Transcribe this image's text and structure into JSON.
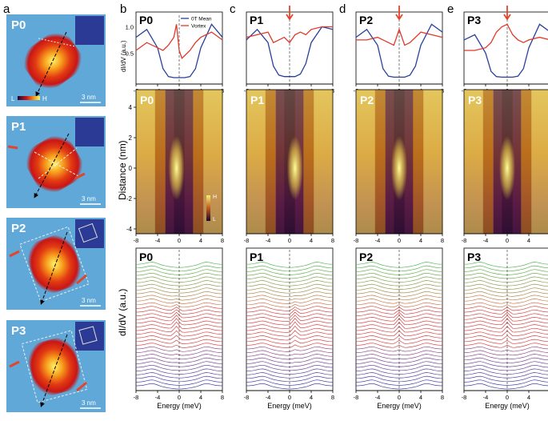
{
  "panel_letters": [
    "a",
    "b",
    "c",
    "d",
    "e"
  ],
  "maps": [
    {
      "label": "P0",
      "scale": "3 nm",
      "legend_low": "L",
      "legend_high": "H"
    },
    {
      "label": "P1",
      "scale": "3 nm"
    },
    {
      "label": "P2",
      "scale": "3 nm"
    },
    {
      "label": "P3",
      "scale": "3 nm"
    }
  ],
  "columns": [
    {
      "label": "P0",
      "legend": [
        "0T Mean",
        "Vortex"
      ],
      "arrow": false,
      "colorbar_high": "H",
      "colorbar_low": "L"
    },
    {
      "label": "P1",
      "arrow": true
    },
    {
      "label": "P2",
      "arrow": true
    },
    {
      "label": "P3",
      "arrow": true
    }
  ],
  "axes": {
    "top_ylabel": "dI/dV (a.u.)",
    "top_yticks": [
      "1.0",
      "0.5"
    ],
    "mid_ylabel": "Distance (nm)",
    "mid_yticks": [
      "4",
      "2",
      "0",
      "-2",
      "-4"
    ],
    "bottom_ylabel": "dI/dV (a.u.)",
    "xticks": [
      "-8",
      "-4",
      "0",
      "4",
      "8"
    ],
    "xlabel": "Energy (meV)"
  },
  "colors": {
    "map_bg": "#5fa8d8",
    "mean_line": "#2a3f9c",
    "vortex_line": "#e0392b",
    "dash": "#444444",
    "arrow": "#e0462b"
  },
  "chart_data": [
    {
      "type": "line",
      "title": "P0",
      "x": [
        -8,
        -6,
        -4,
        -3,
        -2,
        -1,
        -0.5,
        0,
        0.5,
        1,
        2,
        3,
        4,
        6,
        8
      ],
      "series": [
        {
          "name": "0T Mean",
          "values": [
            0.8,
            0.95,
            0.6,
            0.2,
            0.05,
            0.03,
            0.03,
            0.03,
            0.03,
            0.03,
            0.05,
            0.2,
            0.6,
            1.05,
            0.8
          ]
        },
        {
          "name": "Vortex",
          "values": [
            0.55,
            0.7,
            0.6,
            0.55,
            0.65,
            0.8,
            1.05,
            0.55,
            0.4,
            0.45,
            0.55,
            0.7,
            0.8,
            0.9,
            0.75
          ]
        }
      ]
    },
    {
      "type": "line",
      "title": "P1",
      "x": [
        -8,
        -6,
        -4,
        -3,
        -2,
        -1,
        0,
        1,
        2,
        3,
        4,
        6,
        8
      ],
      "series": [
        {
          "name": "0T Mean",
          "values": [
            0.75,
            0.95,
            0.7,
            0.25,
            0.08,
            0.05,
            0.05,
            0.05,
            0.1,
            0.3,
            0.7,
            1.0,
            0.95
          ]
        },
        {
          "name": "Vortex",
          "values": [
            0.8,
            0.85,
            0.9,
            0.7,
            0.75,
            0.8,
            0.7,
            0.85,
            0.9,
            0.85,
            0.95,
            1.0,
            1.0
          ]
        }
      ]
    },
    {
      "type": "line",
      "title": "P2",
      "x": [
        -8,
        -6,
        -4,
        -3,
        -2,
        -1,
        0,
        1,
        2,
        3,
        4,
        6,
        8
      ],
      "series": [
        {
          "name": "0T Mean",
          "values": [
            0.8,
            0.95,
            0.65,
            0.2,
            0.06,
            0.04,
            0.04,
            0.04,
            0.08,
            0.25,
            0.65,
            1.05,
            0.9
          ]
        },
        {
          "name": "Vortex",
          "values": [
            0.75,
            0.75,
            0.8,
            0.75,
            0.7,
            0.65,
            0.95,
            0.65,
            0.7,
            0.8,
            0.9,
            0.85,
            0.8
          ]
        }
      ]
    },
    {
      "type": "line",
      "title": "P3",
      "x": [
        -8,
        -6,
        -4,
        -3,
        -2,
        -1,
        0,
        1,
        2,
        3,
        4,
        6,
        8
      ],
      "series": [
        {
          "name": "0T Mean",
          "values": [
            0.75,
            0.85,
            0.5,
            0.15,
            0.05,
            0.04,
            0.04,
            0.04,
            0.06,
            0.2,
            0.6,
            1.05,
            0.9
          ]
        },
        {
          "name": "Vortex",
          "values": [
            0.55,
            0.55,
            0.6,
            0.7,
            0.9,
            1.0,
            1.05,
            0.85,
            0.75,
            0.7,
            0.75,
            0.8,
            0.75
          ]
        }
      ]
    }
  ]
}
